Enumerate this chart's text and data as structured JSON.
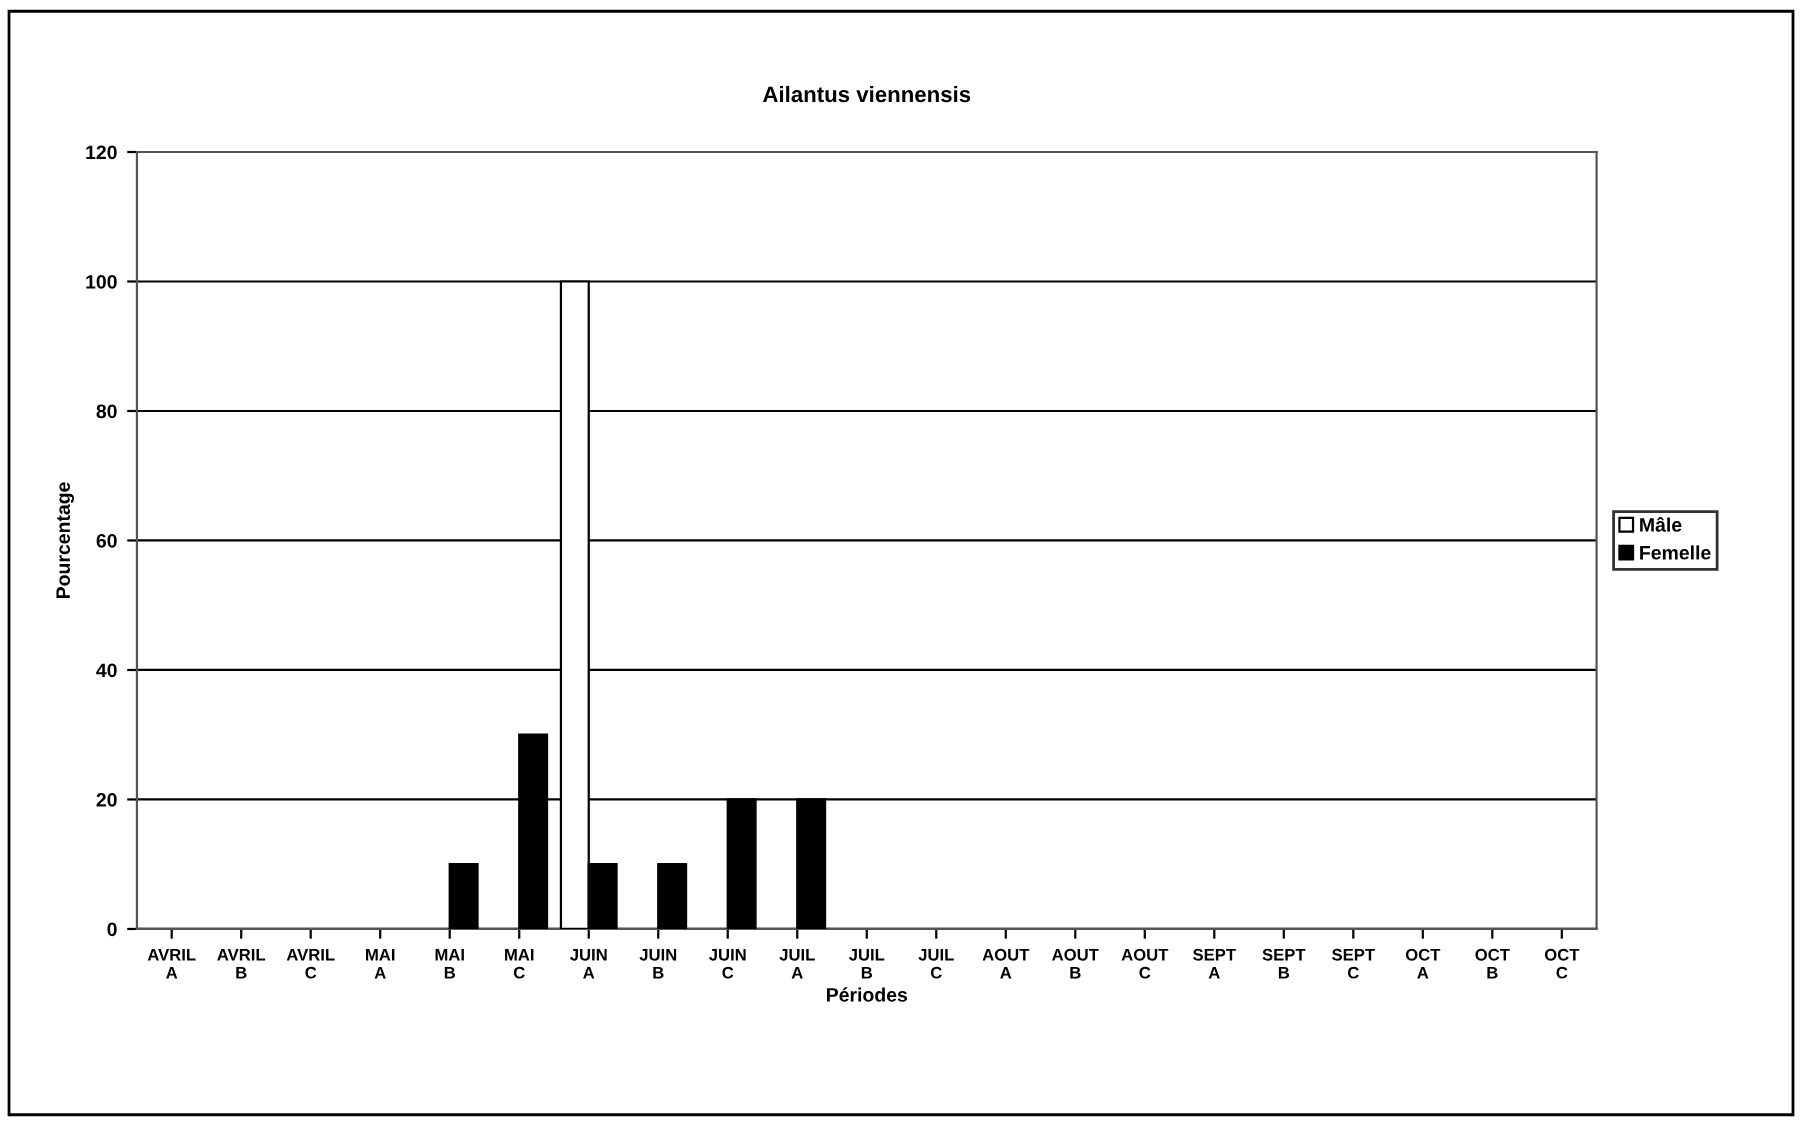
{
  "chart_data": {
    "type": "bar",
    "title": "Ailantus viennensis",
    "xlabel": "Périodes",
    "ylabel": "Pourcentage",
    "categories": [
      "AVRIL\nA",
      "AVRIL\nB",
      "AVRIL\nC",
      "MAI\nA",
      "MAI\nB",
      "MAI\nC",
      "JUIN\nA",
      "JUIN\nB",
      "JUIN\nC",
      "JUIL\nA",
      "JUIL\nB",
      "JUIL\nC",
      "AOUT\nA",
      "AOUT\nB",
      "AOUT\nC",
      "SEPT\nA",
      "SEPT\nB",
      "SEPT\nC",
      "OCT\nA",
      "OCT\nB",
      "OCT\nC"
    ],
    "series": [
      {
        "name": "Mâle",
        "color": "#ffffff",
        "values": [
          null,
          null,
          null,
          null,
          null,
          null,
          100,
          null,
          null,
          null,
          null,
          null,
          null,
          null,
          null,
          null,
          null,
          null,
          null,
          null,
          null
        ]
      },
      {
        "name": "Femelle",
        "color": "#000000",
        "values": [
          null,
          null,
          null,
          null,
          10,
          30,
          10,
          10,
          20,
          20,
          null,
          null,
          null,
          null,
          null,
          null,
          null,
          null,
          null,
          null,
          null
        ]
      }
    ],
    "ylim": [
      0,
      120
    ],
    "yticks": [
      0,
      20,
      40,
      60,
      80,
      100,
      120
    ],
    "grid": "y",
    "legend": "right"
  }
}
